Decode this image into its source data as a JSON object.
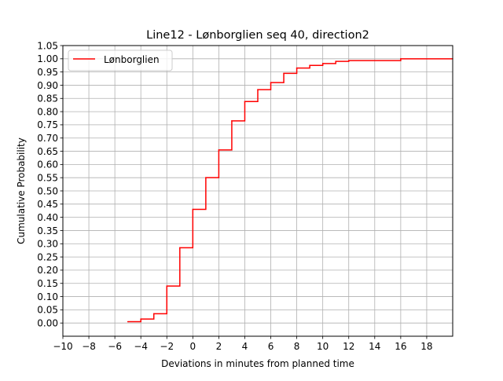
{
  "chart_data": {
    "type": "line",
    "step": "post",
    "title": "Line12 - Lønborglien seq 40, direction2",
    "xlabel": "Deviations in minutes from planned time",
    "ylabel": "Cumulative Probability",
    "xlim": [
      -10,
      20
    ],
    "ylim": [
      -0.05,
      1.05
    ],
    "xticks": [
      -10,
      -8,
      -6,
      -4,
      -2,
      0,
      2,
      4,
      6,
      8,
      10,
      12,
      14,
      16,
      18
    ],
    "xtick_labels": [
      "−10",
      "−8",
      "−6",
      "−4",
      "−2",
      "0",
      "2",
      "4",
      "6",
      "8",
      "10",
      "12",
      "14",
      "16",
      "18"
    ],
    "yticks": [
      0.0,
      0.05,
      0.1,
      0.15,
      0.2,
      0.25,
      0.3,
      0.35,
      0.4,
      0.45,
      0.5,
      0.55,
      0.6,
      0.65,
      0.7,
      0.75,
      0.8,
      0.85,
      0.9,
      0.95,
      1.0,
      1.05
    ],
    "ytick_labels": [
      "0.00",
      "0.05",
      "0.10",
      "0.15",
      "0.20",
      "0.25",
      "0.30",
      "0.35",
      "0.40",
      "0.45",
      "0.50",
      "0.55",
      "0.60",
      "0.65",
      "0.70",
      "0.75",
      "0.80",
      "0.85",
      "0.90",
      "0.95",
      "1.00",
      "1.05"
    ],
    "grid": true,
    "legend_position": "top-left",
    "series": [
      {
        "name": "Lønborglien",
        "color": "#ff0000",
        "x": [
          -5,
          -4,
          -3,
          -2,
          -1,
          0,
          1,
          2,
          3,
          4,
          5,
          6,
          7,
          8,
          9,
          10,
          11,
          12,
          16,
          20
        ],
        "y": [
          0.005,
          0.015,
          0.035,
          0.14,
          0.285,
          0.43,
          0.55,
          0.655,
          0.765,
          0.838,
          0.883,
          0.91,
          0.945,
          0.965,
          0.975,
          0.982,
          0.99,
          0.993,
          1.0,
          1.0
        ]
      }
    ]
  }
}
